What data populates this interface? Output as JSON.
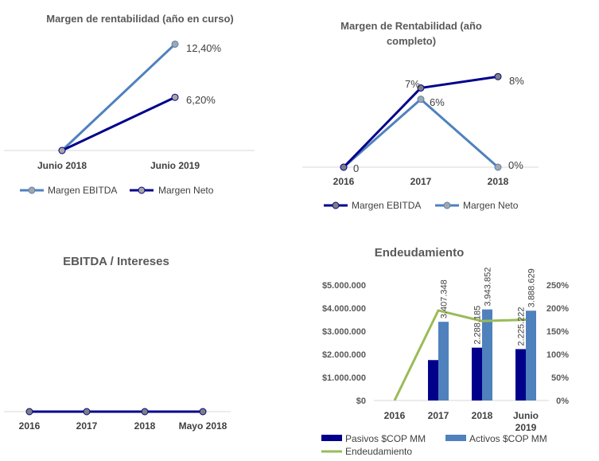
{
  "colors": {
    "navy": "#00008B",
    "blue": "#4F81BD",
    "green": "#9BBB59",
    "marker_gray": "#A6A6A6",
    "marker_dark": "#7F7F7F"
  },
  "chart_data": [
    {
      "type": "line",
      "title": "Margen de rentabilidad (año en curso)",
      "categories": [
        "Junio 2018",
        "Junio 2019"
      ],
      "series": [
        {
          "name": "Margen EBITDA",
          "values": [
            0,
            12.4
          ],
          "labels": [
            "",
            "12,40%"
          ]
        },
        {
          "name": "Margen Neto",
          "values": [
            0,
            6.2
          ],
          "labels": [
            "",
            "6,20%"
          ]
        }
      ],
      "ylim": [
        0,
        13
      ],
      "legend": "bottom"
    },
    {
      "type": "line",
      "title_lines": [
        "Margen de Rentabilidad (año",
        "completo)"
      ],
      "categories": [
        "2016",
        "2017",
        "2018"
      ],
      "series": [
        {
          "name": "Margen EBITDA",
          "values": [
            0,
            7,
            8
          ],
          "labels": [
            "0",
            "7%",
            "8%"
          ]
        },
        {
          "name": "Margen Neto",
          "values": [
            0,
            6,
            0
          ],
          "labels": [
            "",
            "6%",
            "0%"
          ]
        }
      ],
      "ylim": [
        0,
        9
      ],
      "legend": "bottom"
    },
    {
      "type": "line",
      "title": "EBITDA / Intereses",
      "categories": [
        "2016",
        "2017",
        "2018",
        "Mayo 2018"
      ],
      "series": [
        {
          "name": "",
          "values": [
            0,
            0,
            0,
            0
          ]
        }
      ],
      "ylim": [
        0,
        1
      ]
    },
    {
      "type": "bar",
      "title": "Endeudamiento",
      "categories": [
        "2016",
        "2017",
        "2018",
        "Junio 2019"
      ],
      "series": [
        {
          "name": "Pasivos $COP MM",
          "values": [
            0,
            1750000,
            2288185,
            2225222
          ],
          "labels": [
            "",
            "",
            "2.288.185",
            "2.225.222"
          ]
        },
        {
          "name": "Activos $COP MM",
          "values": [
            0,
            3407348,
            3943852,
            3888629
          ],
          "labels": [
            "",
            "3.407.348",
            "3.943.852",
            "3.888.629"
          ]
        },
        {
          "name": "Endeudamiento",
          "type": "line",
          "axis": "right",
          "values": [
            0,
            195,
            172,
            175
          ]
        }
      ],
      "yticks": [
        "$0",
        "$1.000.000",
        "$2.000.000",
        "$3.000.000",
        "$4.000.000",
        "$5.000.000"
      ],
      "ylim": [
        0,
        5000000
      ],
      "y2ticks": [
        "0%",
        "50%",
        "100%",
        "150%",
        "200%",
        "250%"
      ],
      "y2lim": [
        0,
        250
      ],
      "legend": "bottom"
    }
  ]
}
